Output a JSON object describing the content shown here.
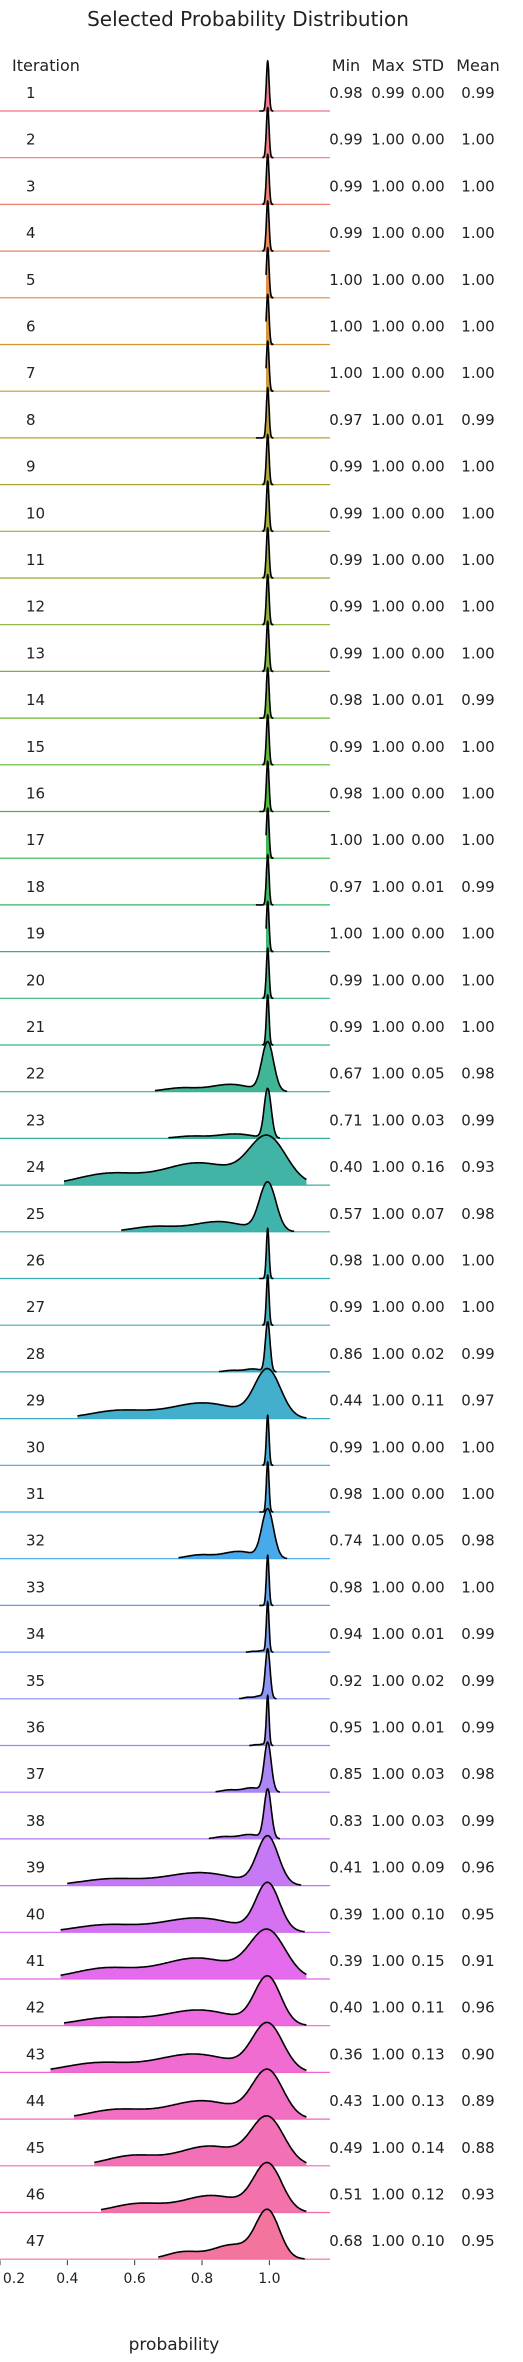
{
  "chart_data": {
    "type": "ridgeline",
    "title": "Selected Probability Distribution",
    "xlabel": "probability",
    "ylabel": "Iteration",
    "xlim": [
      0.2,
      1.18
    ],
    "xticks": [
      "0.2",
      "0.4",
      "0.6",
      "0.8",
      "1.0"
    ],
    "xtick_values": [
      0.2,
      0.4,
      0.6,
      0.8,
      1.0
    ],
    "columns": [
      "Min",
      "Max",
      "STD",
      "Mean"
    ],
    "grid": false,
    "rows": [
      {
        "iteration": "1",
        "min": "0.98",
        "max": "0.99",
        "std": "0.00",
        "mean": "0.99",
        "color": "#f0748c"
      },
      {
        "iteration": "2",
        "min": "0.99",
        "max": "1.00",
        "std": "0.00",
        "mean": "1.00",
        "color": "#f07880"
      },
      {
        "iteration": "3",
        "min": "0.99",
        "max": "1.00",
        "std": "0.00",
        "mean": "1.00",
        "color": "#ee7c6c"
      },
      {
        "iteration": "4",
        "min": "0.99",
        "max": "1.00",
        "std": "0.00",
        "mean": "1.00",
        "color": "#ea8456"
      },
      {
        "iteration": "5",
        "min": "1.00",
        "max": "1.00",
        "std": "0.00",
        "mean": "1.00",
        "color": "#e28a3c"
      },
      {
        "iteration": "6",
        "min": "1.00",
        "max": "1.00",
        "std": "0.00",
        "mean": "1.00",
        "color": "#d49332"
      },
      {
        "iteration": "7",
        "min": "1.00",
        "max": "1.00",
        "std": "0.00",
        "mean": "1.00",
        "color": "#c89a31"
      },
      {
        "iteration": "8",
        "min": "0.97",
        "max": "1.00",
        "std": "0.01",
        "mean": "0.99",
        "color": "#bb9f31"
      },
      {
        "iteration": "9",
        "min": "0.99",
        "max": "1.00",
        "std": "0.00",
        "mean": "1.00",
        "color": "#aea431"
      },
      {
        "iteration": "10",
        "min": "0.99",
        "max": "1.00",
        "std": "0.00",
        "mean": "1.00",
        "color": "#a3a831"
      },
      {
        "iteration": "11",
        "min": "0.99",
        "max": "1.00",
        "std": "0.00",
        "mean": "1.00",
        "color": "#97ab31"
      },
      {
        "iteration": "12",
        "min": "0.99",
        "max": "1.00",
        "std": "0.00",
        "mean": "1.00",
        "color": "#89ae31"
      },
      {
        "iteration": "13",
        "min": "0.99",
        "max": "1.00",
        "std": "0.00",
        "mean": "1.00",
        "color": "#7bb231"
      },
      {
        "iteration": "14",
        "min": "0.98",
        "max": "1.00",
        "std": "0.01",
        "mean": "0.99",
        "color": "#6cb431"
      },
      {
        "iteration": "15",
        "min": "0.99",
        "max": "1.00",
        "std": "0.00",
        "mean": "1.00",
        "color": "#5bb731"
      },
      {
        "iteration": "16",
        "min": "0.98",
        "max": "1.00",
        "std": "0.00",
        "mean": "1.00",
        "color": "#45b932"
      },
      {
        "iteration": "17",
        "min": "1.00",
        "max": "1.00",
        "std": "0.00",
        "mean": "1.00",
        "color": "#33b74a"
      },
      {
        "iteration": "18",
        "min": "0.97",
        "max": "1.00",
        "std": "0.01",
        "mean": "0.99",
        "color": "#34b65f"
      },
      {
        "iteration": "19",
        "min": "1.00",
        "max": "1.00",
        "std": "0.00",
        "mean": "1.00",
        "color": "#34b56f"
      },
      {
        "iteration": "20",
        "min": "0.99",
        "max": "1.00",
        "std": "0.00",
        "mean": "1.00",
        "color": "#35b47c"
      },
      {
        "iteration": "21",
        "min": "0.99",
        "max": "1.00",
        "std": "0.00",
        "mean": "1.00",
        "color": "#35b387"
      },
      {
        "iteration": "22",
        "min": "0.67",
        "max": "1.00",
        "std": "0.05",
        "mean": "0.98",
        "color": "#36b290"
      },
      {
        "iteration": "23",
        "min": "0.71",
        "max": "1.00",
        "std": "0.03",
        "mean": "0.99",
        "color": "#36b199"
      },
      {
        "iteration": "24",
        "min": "0.40",
        "max": "1.00",
        "std": "0.16",
        "mean": "0.93",
        "color": "#37b0a1"
      },
      {
        "iteration": "25",
        "min": "0.57",
        "max": "1.00",
        "std": "0.07",
        "mean": "0.98",
        "color": "#37afa9"
      },
      {
        "iteration": "26",
        "min": "0.98",
        "max": "1.00",
        "std": "0.00",
        "mean": "1.00",
        "color": "#38aeb0"
      },
      {
        "iteration": "27",
        "min": "0.99",
        "max": "1.00",
        "std": "0.00",
        "mean": "1.00",
        "color": "#38adb8"
      },
      {
        "iteration": "28",
        "min": "0.86",
        "max": "1.00",
        "std": "0.02",
        "mean": "0.99",
        "color": "#39acc0"
      },
      {
        "iteration": "29",
        "min": "0.44",
        "max": "1.00",
        "std": "0.11",
        "mean": "0.97",
        "color": "#3aabc9"
      },
      {
        "iteration": "30",
        "min": "0.99",
        "max": "1.00",
        "std": "0.00",
        "mean": "1.00",
        "color": "#3ba9d3"
      },
      {
        "iteration": "31",
        "min": "0.98",
        "max": "1.00",
        "std": "0.00",
        "mean": "1.00",
        "color": "#3ca7de"
      },
      {
        "iteration": "32",
        "min": "0.74",
        "max": "1.00",
        "std": "0.05",
        "mean": "0.98",
        "color": "#3ea4ea"
      },
      {
        "iteration": "33",
        "min": "0.98",
        "max": "1.00",
        "std": "0.00",
        "mean": "1.00",
        "color": "#5a9df0"
      },
      {
        "iteration": "34",
        "min": "0.94",
        "max": "1.00",
        "std": "0.01",
        "mean": "0.99",
        "color": "#7596f3"
      },
      {
        "iteration": "35",
        "min": "0.92",
        "max": "1.00",
        "std": "0.02",
        "mean": "0.99",
        "color": "#878ff4"
      },
      {
        "iteration": "36",
        "min": "0.95",
        "max": "1.00",
        "std": "0.01",
        "mean": "0.99",
        "color": "#9788f4"
      },
      {
        "iteration": "37",
        "min": "0.85",
        "max": "1.00",
        "std": "0.03",
        "mean": "0.98",
        "color": "#a681f4"
      },
      {
        "iteration": "38",
        "min": "0.83",
        "max": "1.00",
        "std": "0.03",
        "mean": "0.99",
        "color": "#b47af4"
      },
      {
        "iteration": "39",
        "min": "0.41",
        "max": "1.00",
        "std": "0.09",
        "mean": "0.96",
        "color": "#c372f4"
      },
      {
        "iteration": "40",
        "min": "0.39",
        "max": "1.00",
        "std": "0.10",
        "mean": "0.95",
        "color": "#d36af1"
      },
      {
        "iteration": "41",
        "min": "0.39",
        "max": "1.00",
        "std": "0.15",
        "mean": "0.91",
        "color": "#e263eb"
      },
      {
        "iteration": "42",
        "min": "0.40",
        "max": "1.00",
        "std": "0.11",
        "mean": "0.96",
        "color": "#ec62de"
      },
      {
        "iteration": "43",
        "min": "0.36",
        "max": "1.00",
        "std": "0.13",
        "mean": "0.90",
        "color": "#ef64cf"
      },
      {
        "iteration": "44",
        "min": "0.43",
        "max": "1.00",
        "std": "0.13",
        "mean": "0.89",
        "color": "#f066c0"
      },
      {
        "iteration": "45",
        "min": "0.49",
        "max": "1.00",
        "std": "0.14",
        "mean": "0.88",
        "color": "#f168b2"
      },
      {
        "iteration": "46",
        "min": "0.51",
        "max": "1.00",
        "std": "0.12",
        "mean": "0.93",
        "color": "#f26aa6"
      },
      {
        "iteration": "47",
        "min": "0.68",
        "max": "1.00",
        "std": "0.10",
        "mean": "0.95",
        "color": "#f26d98"
      }
    ]
  }
}
